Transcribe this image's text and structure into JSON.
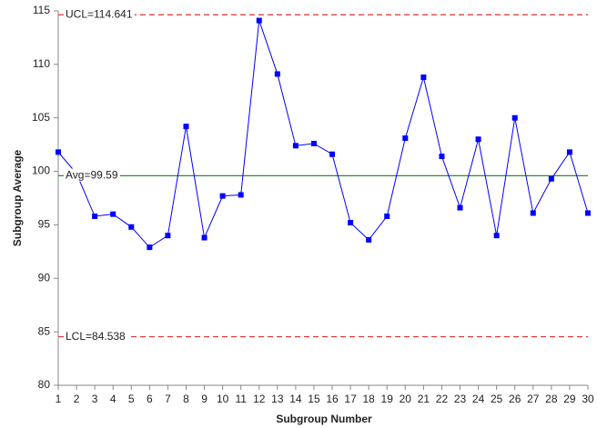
{
  "chart_data": {
    "type": "line",
    "x": [
      1,
      2,
      3,
      4,
      5,
      6,
      7,
      8,
      9,
      10,
      11,
      12,
      13,
      14,
      15,
      16,
      17,
      18,
      19,
      20,
      21,
      22,
      23,
      24,
      25,
      26,
      27,
      28,
      29,
      30
    ],
    "values": [
      101.8,
      99.8,
      95.8,
      96.0,
      94.8,
      92.9,
      94.0,
      104.2,
      93.8,
      97.7,
      97.8,
      114.1,
      109.1,
      102.4,
      102.6,
      101.6,
      95.2,
      93.6,
      95.8,
      103.1,
      108.8,
      101.4,
      96.6,
      103.0,
      94.0,
      105.0,
      96.1,
      99.3,
      101.8,
      96.1
    ],
    "color": "#0000ff",
    "xlim": [
      1,
      30
    ],
    "xticks": [
      1,
      2,
      3,
      4,
      5,
      6,
      7,
      8,
      9,
      10,
      11,
      12,
      13,
      14,
      15,
      16,
      17,
      18,
      19,
      20,
      21,
      22,
      23,
      24,
      25,
      26,
      27,
      28,
      29,
      30
    ],
    "ylim": [
      80,
      115
    ],
    "yticks": [
      80,
      85,
      90,
      95,
      100,
      105,
      110,
      115
    ],
    "x_label": "Subgroup Number",
    "y_label": "Subgroup Average",
    "reference_lines": [
      {
        "label": "UCL=114.641",
        "value": 114.641,
        "color": "#e03030",
        "dashed": true
      },
      {
        "label": "Avg=99.59",
        "value": 99.59,
        "color": "#2e8b2e",
        "dashed": false
      },
      {
        "label": "LCL=84.538",
        "value": 84.538,
        "color": "#e03030",
        "dashed": true
      }
    ]
  }
}
